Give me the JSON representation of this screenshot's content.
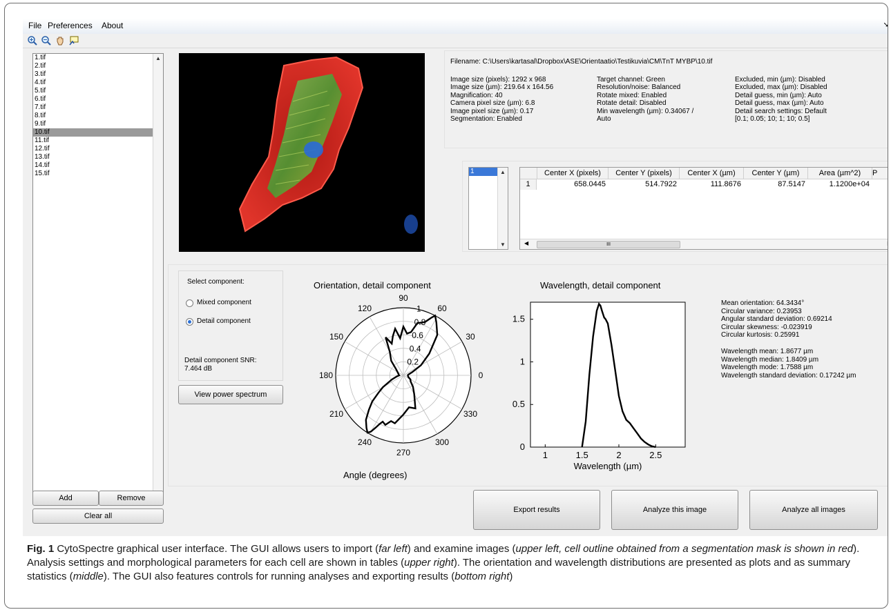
{
  "menu": [
    "File",
    "Preferences",
    "About"
  ],
  "toolbar_icons": [
    "zoom-in-icon",
    "zoom-out-icon",
    "pan-hand-icon",
    "data-cursor-icon"
  ],
  "files": [
    "1.tif",
    "2.tif",
    "3.tif",
    "4.tif",
    "5.tif",
    "6.tif",
    "7.tif",
    "8.tif",
    "9.tif",
    "10.tif",
    "11.tif",
    "12.tif",
    "13.tif",
    "14.tif",
    "15.tif"
  ],
  "selected_file": "10.tif",
  "file_buttons": {
    "add": "Add",
    "remove": "Remove",
    "clear": "Clear all"
  },
  "info": {
    "filename": "Filename: C:\\Users\\kartasal\\Dropbox\\ASE\\Orientaatio\\Testikuvia\\CM\\TnT MYBP\\10.tif",
    "col1": [
      "Image size (pixels): 1292 x 968",
      "Image size (µm): 219.64 x 164.56",
      "Magnification: 40",
      "Camera pixel size (µm): 6.8",
      "Image pixel size (µm): 0.17",
      "Segmentation: Enabled"
    ],
    "col2": [
      "Target channel: Green",
      "Resolution/noise: Balanced",
      "Rotate mixed: Enabled",
      "Rotate detail: Disabled",
      "Min wavelength (µm): 0.34067 /",
      "Auto"
    ],
    "col3": [
      "Excluded, min (µm): Disabled",
      "Excluded, max (µm): Disabled",
      "Detail guess, min (µm): Auto",
      "Detail guess, max (µm): Auto",
      "Detail search settings: Default",
      "[0.1; 0.05; 10; 1; 10; 0.5]"
    ]
  },
  "cell_list": [
    "1"
  ],
  "table": {
    "headers": [
      "Center X (pixels)",
      "Center Y (pixels)",
      "Center X (µm)",
      "Center Y (µm)",
      "Area (µm^2)",
      "P"
    ],
    "row_index": "1",
    "row": [
      "658.0445",
      "514.7922",
      "111.8676",
      "87.5147",
      "1.1200e+04"
    ],
    "scroll_marker": "III"
  },
  "component": {
    "label": "Select component:",
    "options": [
      "Mixed component",
      "Detail component"
    ],
    "selected": "Detail component",
    "snr_label": "Detail component SNR:",
    "snr_value": "7.464 dB",
    "spectrum_button": "View power spectrum"
  },
  "chart_data": [
    {
      "type": "polar",
      "title": "Orientation, detail component",
      "xlabel": "Angle (degrees)",
      "angle_ticks": [
        "0",
        "30",
        "60",
        "90",
        "120",
        "150",
        "180",
        "210",
        "240",
        "270",
        "300",
        "330"
      ],
      "radial_ticks": [
        "0.2",
        "0.4",
        "0.6",
        "0.8",
        "1"
      ],
      "rmax": 1,
      "series": [
        {
          "angles": [
            0,
            10,
            20,
            30,
            40,
            50,
            58,
            62,
            64,
            68,
            75,
            80,
            85,
            90,
            95,
            100,
            105,
            110,
            115,
            120,
            130,
            140,
            150,
            160,
            170,
            180,
            190,
            200,
            210,
            215,
            220,
            225,
            230,
            235,
            238,
            240,
            242,
            244,
            246,
            250,
            255,
            260,
            270,
            280,
            290,
            300,
            310,
            320,
            330,
            340,
            350,
            360
          ],
          "values": [
            0.06,
            0.08,
            0.14,
            0.3,
            0.5,
            0.78,
            0.92,
            1.0,
            0.95,
            0.85,
            0.8,
            0.65,
            0.62,
            0.72,
            0.55,
            0.7,
            0.6,
            0.5,
            0.62,
            0.4,
            0.28,
            0.14,
            0.1,
            0.08,
            0.07,
            0.06,
            0.1,
            0.18,
            0.35,
            0.45,
            0.6,
            0.72,
            0.86,
            0.95,
            1.0,
            0.96,
            0.88,
            0.8,
            0.75,
            0.78,
            0.7,
            0.72,
            0.58,
            0.48,
            0.52,
            0.32,
            0.22,
            0.14,
            0.12,
            0.08,
            0.07,
            0.06
          ]
        }
      ]
    },
    {
      "type": "line",
      "title": "Wavelength, detail component",
      "xlabel": "Wavelength (µm)",
      "ylabel": "",
      "xlim": [
        0.8,
        2.9
      ],
      "ylim": [
        0,
        1.7
      ],
      "xticks": [
        "1",
        "1.5",
        "2",
        "2.5"
      ],
      "yticks": [
        "0",
        "0.5",
        "1",
        "1.5"
      ],
      "series": [
        {
          "x": [
            1.5,
            1.55,
            1.6,
            1.65,
            1.7,
            1.73,
            1.75,
            1.77,
            1.8,
            1.82,
            1.85,
            1.9,
            1.95,
            2.0,
            2.05,
            2.1,
            2.15,
            2.2,
            2.25,
            2.3,
            2.35,
            2.4,
            2.45,
            2.5
          ],
          "y": [
            0,
            0.3,
            0.85,
            1.3,
            1.6,
            1.68,
            1.66,
            1.6,
            1.52,
            1.5,
            1.45,
            1.2,
            0.9,
            0.6,
            0.42,
            0.32,
            0.28,
            0.22,
            0.16,
            0.1,
            0.06,
            0.03,
            0.01,
            0
          ]
        }
      ]
    }
  ],
  "stats": {
    "orientation": [
      "Mean orientation: 64.3434°",
      "Circular variance: 0.23953",
      "Angular standard deviation: 0.69214",
      "Circular skewness: -0.023919",
      "Circular kurtosis: 0.25991"
    ],
    "wavelength": [
      "Wavelength mean: 1.8677 µm",
      "Wavelength median: 1.8409 µm",
      "Wavelength mode: 1.7588 µm",
      "Wavelength standard deviation: 0.17242 µm"
    ]
  },
  "actions": {
    "export": "Export results",
    "analyze_this": "Analyze this image",
    "analyze_all": "Analyze all images"
  },
  "caption": {
    "fig": "Fig. 1",
    "parts": [
      " CytoSpectre graphical user interface. The GUI allows users to import (",
      "far left",
      ") and examine images (",
      "upper left, cell outline obtained from a segmentation mask is shown in red",
      "). Analysis settings and morphological parameters for each cell are shown in tables (",
      "upper right",
      "). The orientation and wavelength distributions are presented as plots and as summary statistics (",
      "middle",
      "). The GUI also features controls for running analyses and exporting results (",
      "bottom right",
      ")"
    ]
  },
  "colors": {
    "window_bg": "#f0f0f0",
    "selection": "#9a9a9a",
    "cell_red": "#d8281e",
    "cell_green": "#5aa836",
    "nucleus_blue": "#2a6ad6"
  }
}
